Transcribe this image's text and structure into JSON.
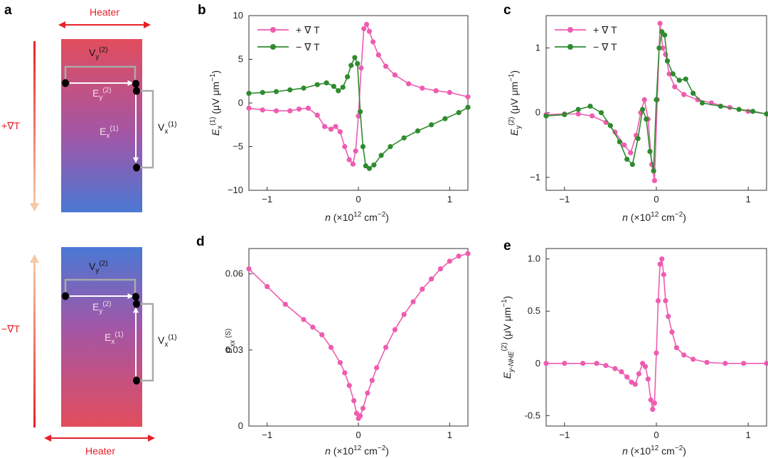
{
  "colors": {
    "pink": "#ee5cb0",
    "green": "#2e8b2e",
    "heater_red": "#e8202a",
    "arrow_red": "#e8202a",
    "arrow_peach": "#f6c9a6",
    "bar_red": "#e24d5d",
    "bar_blue": "#4a78d4"
  },
  "diagram": {
    "panel_label": "a",
    "top": {
      "heater_label": "Heater",
      "gradient_label": "+∇T",
      "vy_label": "Vy(2)",
      "ey_label": "Ey(2)",
      "ex_label": "Ex(1)",
      "vx_label": "Vx(1)"
    },
    "bottom": {
      "heater_label": "Heater",
      "gradient_label": "−∇T",
      "vy_label": "Vy(2)",
      "ey_label": "Ey(2)",
      "ex_label": "Ex(1)",
      "vx_label": "Vx(1)"
    }
  },
  "legend_labels": {
    "plus": "+ ∇ T",
    "minus": "− ∇ T"
  },
  "chart_data": [
    {
      "id": "b",
      "type": "line",
      "panel_label": "b",
      "xlabel": "n (×10¹² cm⁻²)",
      "ylabel": "Ex(1) (μV μm⁻¹)",
      "xlim": [
        -1.2,
        1.2
      ],
      "ylim": [
        -10,
        10
      ],
      "xticks": [
        -1,
        0,
        1
      ],
      "yticks": [
        -10,
        -5,
        0,
        5,
        10
      ],
      "series": [
        {
          "name": "+ ∇ T",
          "color": "#ee5cb0",
          "points": [
            [
              -1.2,
              -0.6
            ],
            [
              -1.05,
              -0.8
            ],
            [
              -0.9,
              -0.9
            ],
            [
              -0.75,
              -0.9
            ],
            [
              -0.65,
              -0.7
            ],
            [
              -0.55,
              -0.6
            ],
            [
              -0.45,
              -1.4
            ],
            [
              -0.37,
              -2.7
            ],
            [
              -0.3,
              -3.0
            ],
            [
              -0.25,
              -2.7
            ],
            [
              -0.2,
              -3.3
            ],
            [
              -0.15,
              -5.0
            ],
            [
              -0.1,
              -6.5
            ],
            [
              -0.06,
              -7.0
            ],
            [
              -0.03,
              -5.5
            ],
            [
              0,
              -1.5
            ],
            [
              0.03,
              4.0
            ],
            [
              0.06,
              8.5
            ],
            [
              0.09,
              9.0
            ],
            [
              0.12,
              8.2
            ],
            [
              0.16,
              7.0
            ],
            [
              0.22,
              5.5
            ],
            [
              0.3,
              4.2
            ],
            [
              0.4,
              3.2
            ],
            [
              0.55,
              2.2
            ],
            [
              0.7,
              1.7
            ],
            [
              0.85,
              1.4
            ],
            [
              1.0,
              1.2
            ],
            [
              1.2,
              0.7
            ]
          ]
        },
        {
          "name": "− ∇ T",
          "color": "#2e8b2e",
          "points": [
            [
              -1.2,
              1.1
            ],
            [
              -1.05,
              1.2
            ],
            [
              -0.9,
              1.3
            ],
            [
              -0.75,
              1.5
            ],
            [
              -0.6,
              1.7
            ],
            [
              -0.45,
              2.1
            ],
            [
              -0.35,
              2.3
            ],
            [
              -0.27,
              1.9
            ],
            [
              -0.22,
              1.4
            ],
            [
              -0.17,
              1.8
            ],
            [
              -0.12,
              3.0
            ],
            [
              -0.08,
              4.3
            ],
            [
              -0.04,
              5.2
            ],
            [
              -0.01,
              4.5
            ],
            [
              0.02,
              -1.0
            ],
            [
              0.05,
              -5.0
            ],
            [
              0.08,
              -7.2
            ],
            [
              0.12,
              -7.5
            ],
            [
              0.17,
              -7.1
            ],
            [
              0.25,
              -6.0
            ],
            [
              0.35,
              -5.0
            ],
            [
              0.5,
              -4.0
            ],
            [
              0.65,
              -3.2
            ],
            [
              0.8,
              -2.5
            ],
            [
              0.95,
              -1.8
            ],
            [
              1.1,
              -1.1
            ],
            [
              1.2,
              -0.5
            ]
          ]
        }
      ]
    },
    {
      "id": "c",
      "type": "line",
      "panel_label": "c",
      "xlabel": "n (×10¹² cm⁻²)",
      "ylabel": "Ey(2) (μV μm⁻¹)",
      "xlim": [
        -1.2,
        1.2
      ],
      "ylim": [
        -1.2,
        1.5
      ],
      "xticks": [
        -1,
        0,
        1
      ],
      "yticks": [
        -1,
        0,
        1
      ],
      "series": [
        {
          "name": "+ ∇ T",
          "color": "#ee5cb0",
          "points": [
            [
              -1.2,
              -0.03
            ],
            [
              -1.0,
              -0.02
            ],
            [
              -0.85,
              -0.02
            ],
            [
              -0.7,
              -0.05
            ],
            [
              -0.55,
              -0.15
            ],
            [
              -0.45,
              -0.3
            ],
            [
              -0.35,
              -0.5
            ],
            [
              -0.28,
              -0.62
            ],
            [
              -0.22,
              -0.35
            ],
            [
              -0.17,
              0.0
            ],
            [
              -0.13,
              0.2
            ],
            [
              -0.09,
              -0.1
            ],
            [
              -0.05,
              -0.8
            ],
            [
              -0.02,
              -1.05
            ],
            [
              0.01,
              0.2
            ],
            [
              0.04,
              1.38
            ],
            [
              0.07,
              1.0
            ],
            [
              0.1,
              0.9
            ],
            [
              0.14,
              0.6
            ],
            [
              0.2,
              0.4
            ],
            [
              0.3,
              0.28
            ],
            [
              0.45,
              0.2
            ],
            [
              0.6,
              0.15
            ],
            [
              0.8,
              0.08
            ],
            [
              1.0,
              0.02
            ],
            [
              1.2,
              -0.02
            ]
          ]
        },
        {
          "name": "− ∇ T",
          "color": "#2e8b2e",
          "points": [
            [
              -1.2,
              -0.05
            ],
            [
              -1.0,
              -0.03
            ],
            [
              -0.85,
              0.05
            ],
            [
              -0.72,
              0.1
            ],
            [
              -0.6,
              0.0
            ],
            [
              -0.5,
              -0.2
            ],
            [
              -0.4,
              -0.45
            ],
            [
              -0.32,
              -0.72
            ],
            [
              -0.26,
              -0.8
            ],
            [
              -0.2,
              -0.4
            ],
            [
              -0.15,
              0.05
            ],
            [
              -0.11,
              -0.1
            ],
            [
              -0.07,
              -0.6
            ],
            [
              -0.03,
              -0.9
            ],
            [
              0.0,
              0.2
            ],
            [
              0.03,
              1.0
            ],
            [
              0.06,
              1.25
            ],
            [
              0.09,
              1.2
            ],
            [
              0.12,
              0.8
            ],
            [
              0.18,
              0.6
            ],
            [
              0.25,
              0.5
            ],
            [
              0.32,
              0.52
            ],
            [
              0.4,
              0.3
            ],
            [
              0.5,
              0.15
            ],
            [
              0.7,
              0.1
            ],
            [
              0.9,
              0.05
            ],
            [
              1.05,
              0.02
            ],
            [
              1.2,
              -0.02
            ]
          ]
        }
      ]
    },
    {
      "id": "d",
      "type": "line",
      "panel_label": "d",
      "xlabel": "n (×10¹² cm⁻²)",
      "ylabel": "σxx (S)",
      "xlim": [
        -1.2,
        1.2
      ],
      "ylim": [
        0,
        0.07
      ],
      "xticks": [
        -1,
        0,
        1
      ],
      "yticks": [
        0,
        0.03,
        0.06
      ],
      "series": [
        {
          "name": "σxx",
          "color": "#ee5cb0",
          "points": [
            [
              -1.2,
              0.062
            ],
            [
              -1.0,
              0.055
            ],
            [
              -0.8,
              0.048
            ],
            [
              -0.6,
              0.042
            ],
            [
              -0.5,
              0.039
            ],
            [
              -0.4,
              0.036
            ],
            [
              -0.3,
              0.031
            ],
            [
              -0.2,
              0.025
            ],
            [
              -0.15,
              0.021
            ],
            [
              -0.1,
              0.016
            ],
            [
              -0.05,
              0.01
            ],
            [
              -0.02,
              0.005
            ],
            [
              0.0,
              0.003
            ],
            [
              0.02,
              0.004
            ],
            [
              0.05,
              0.007
            ],
            [
              0.1,
              0.013
            ],
            [
              0.15,
              0.018
            ],
            [
              0.2,
              0.023
            ],
            [
              0.3,
              0.031
            ],
            [
              0.4,
              0.038
            ],
            [
              0.5,
              0.044
            ],
            [
              0.6,
              0.049
            ],
            [
              0.7,
              0.054
            ],
            [
              0.8,
              0.058
            ],
            [
              0.9,
              0.062
            ],
            [
              1.0,
              0.065
            ],
            [
              1.1,
              0.067
            ],
            [
              1.2,
              0.068
            ]
          ]
        }
      ]
    },
    {
      "id": "e",
      "type": "line",
      "panel_label": "e",
      "xlabel": "n (×10¹² cm⁻²)",
      "ylabel": "Ey-NHE(2) (μV μm⁻¹)",
      "xlim": [
        -1.2,
        1.2
      ],
      "ylim": [
        -0.6,
        1.1
      ],
      "xticks": [
        -1,
        0,
        1
      ],
      "yticks": [
        -0.5,
        0,
        0.5,
        1.0
      ],
      "ytick_labels": [
        "-0.5",
        "0",
        "0.5",
        "1.0"
      ],
      "series": [
        {
          "name": "Ey-NHE",
          "color": "#ee5cb0",
          "points": [
            [
              -1.2,
              0.0
            ],
            [
              -1.0,
              0.0
            ],
            [
              -0.8,
              0.0
            ],
            [
              -0.65,
              0.0
            ],
            [
              -0.55,
              -0.02
            ],
            [
              -0.45,
              -0.05
            ],
            [
              -0.38,
              -0.08
            ],
            [
              -0.32,
              -0.13
            ],
            [
              -0.27,
              -0.18
            ],
            [
              -0.23,
              -0.2
            ],
            [
              -0.19,
              -0.1
            ],
            [
              -0.15,
              0.0
            ],
            [
              -0.12,
              -0.03
            ],
            [
              -0.09,
              -0.15
            ],
            [
              -0.06,
              -0.35
            ],
            [
              -0.04,
              -0.44
            ],
            [
              -0.02,
              -0.38
            ],
            [
              0.0,
              0.1
            ],
            [
              0.02,
              0.6
            ],
            [
              0.04,
              0.95
            ],
            [
              0.06,
              1.0
            ],
            [
              0.08,
              0.85
            ],
            [
              0.1,
              0.6
            ],
            [
              0.13,
              0.45
            ],
            [
              0.17,
              0.3
            ],
            [
              0.22,
              0.15
            ],
            [
              0.3,
              0.08
            ],
            [
              0.4,
              0.04
            ],
            [
              0.55,
              0.01
            ],
            [
              0.75,
              0.0
            ],
            [
              0.95,
              0.0
            ],
            [
              1.2,
              0.0
            ]
          ]
        }
      ]
    }
  ]
}
